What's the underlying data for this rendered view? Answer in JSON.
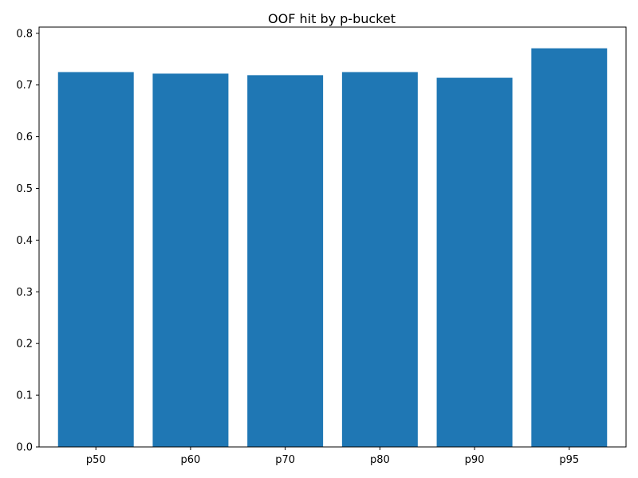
{
  "chart_data": {
    "type": "bar",
    "title": "OOF hit by p-bucket",
    "xlabel": "",
    "ylabel": "",
    "categories": [
      "p50",
      "p60",
      "p70",
      "p80",
      "p90",
      "p95"
    ],
    "values": [
      0.725,
      0.722,
      0.719,
      0.725,
      0.714,
      0.771
    ],
    "ylim": [
      0,
      0.812
    ],
    "yticks": [
      0.0,
      0.1,
      0.2,
      0.3,
      0.4,
      0.5,
      0.6,
      0.7,
      0.8
    ],
    "ytick_labels": [
      "0.0",
      "0.1",
      "0.2",
      "0.3",
      "0.4",
      "0.5",
      "0.6",
      "0.7",
      "0.8"
    ],
    "grid": false,
    "legend": "none",
    "bar_color": "#1f77b4"
  }
}
